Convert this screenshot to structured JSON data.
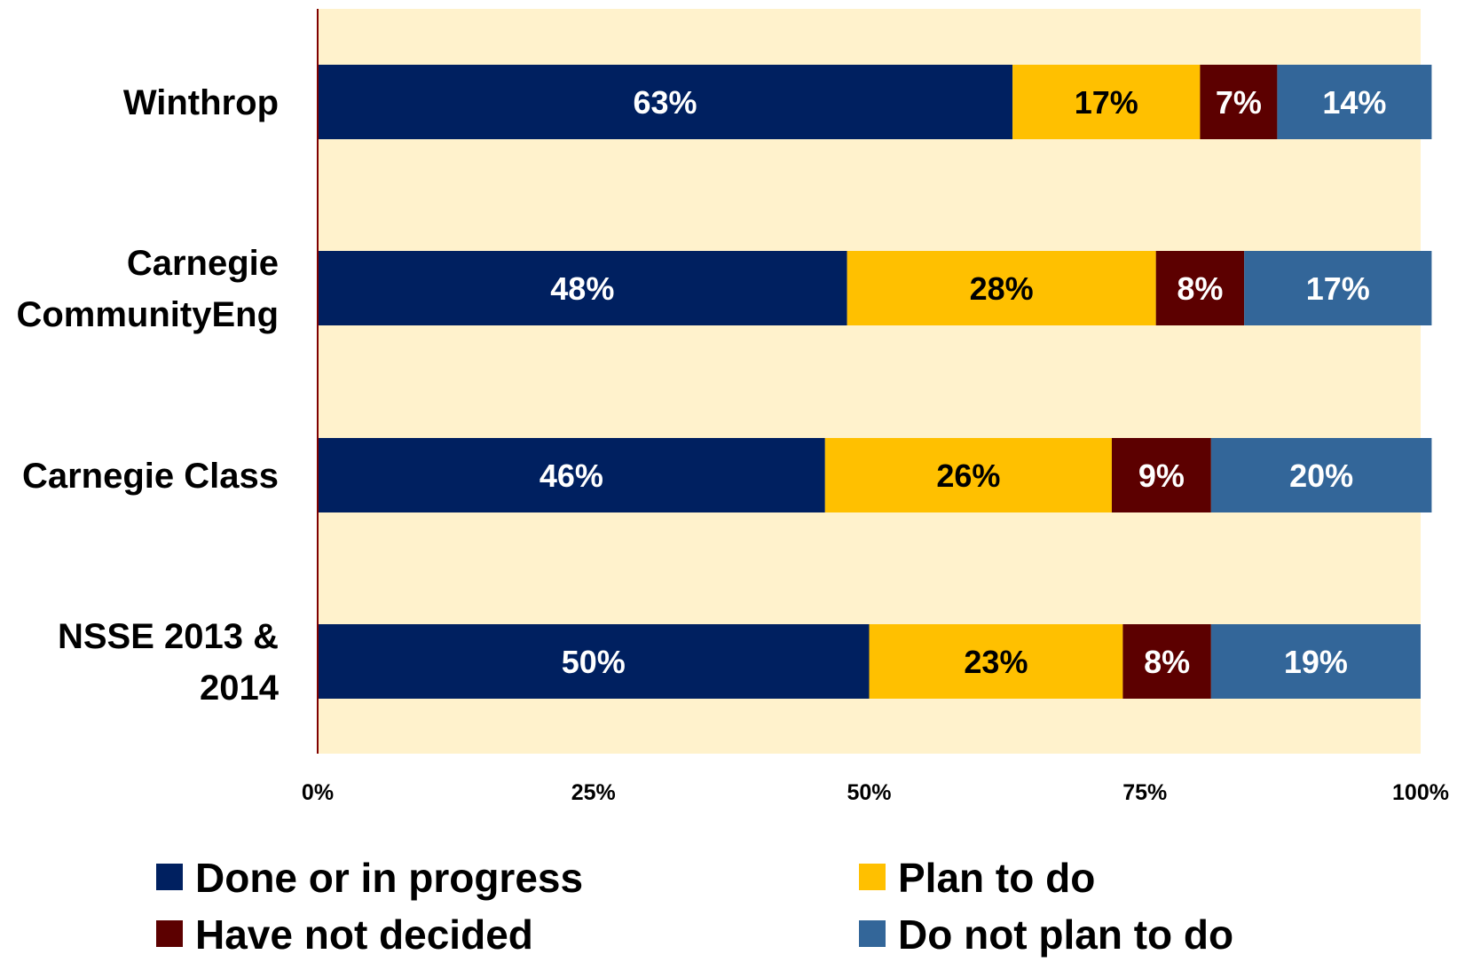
{
  "chart_data": {
    "type": "bar",
    "orientation": "horizontal",
    "stacked": true,
    "categories": [
      [
        "Winthrop"
      ],
      [
        "Carnegie",
        "CommunityEng"
      ],
      [
        "Carnegie Class"
      ],
      [
        "NSSE 2013 &",
        "2014"
      ]
    ],
    "series": [
      {
        "name": "Done or in progress",
        "values": [
          63,
          48,
          46,
          50
        ],
        "labels": [
          "63%",
          "48%",
          "46%",
          "50%"
        ]
      },
      {
        "name": "Plan to do",
        "values": [
          17,
          28,
          26,
          23
        ],
        "labels": [
          "17%",
          "28%",
          "26%",
          "23%"
        ]
      },
      {
        "name": "Have not decided",
        "values": [
          7,
          8,
          9,
          8
        ],
        "labels": [
          "7%",
          "8%",
          "9%",
          "8%"
        ]
      },
      {
        "name": "Do not plan to do",
        "values": [
          14,
          17,
          20,
          19
        ],
        "labels": [
          "14%",
          "17%",
          "20%",
          "19%"
        ]
      }
    ],
    "xlim": [
      0,
      100
    ],
    "xticks": [
      "0%",
      "25%",
      "50%",
      "75%",
      "100%"
    ],
    "grid": false,
    "legend_position": "bottom",
    "title": "",
    "xlabel": "",
    "ylabel": ""
  },
  "colors": {
    "plot_background": "#FFF2CC",
    "axis_line": "#800000",
    "series": [
      "#002060",
      "#FFC000",
      "#5C0000",
      "#336699"
    ],
    "label_text": [
      "#FFFFFF",
      "#000000",
      "#FFFFFF",
      "#FFFFFF"
    ]
  }
}
